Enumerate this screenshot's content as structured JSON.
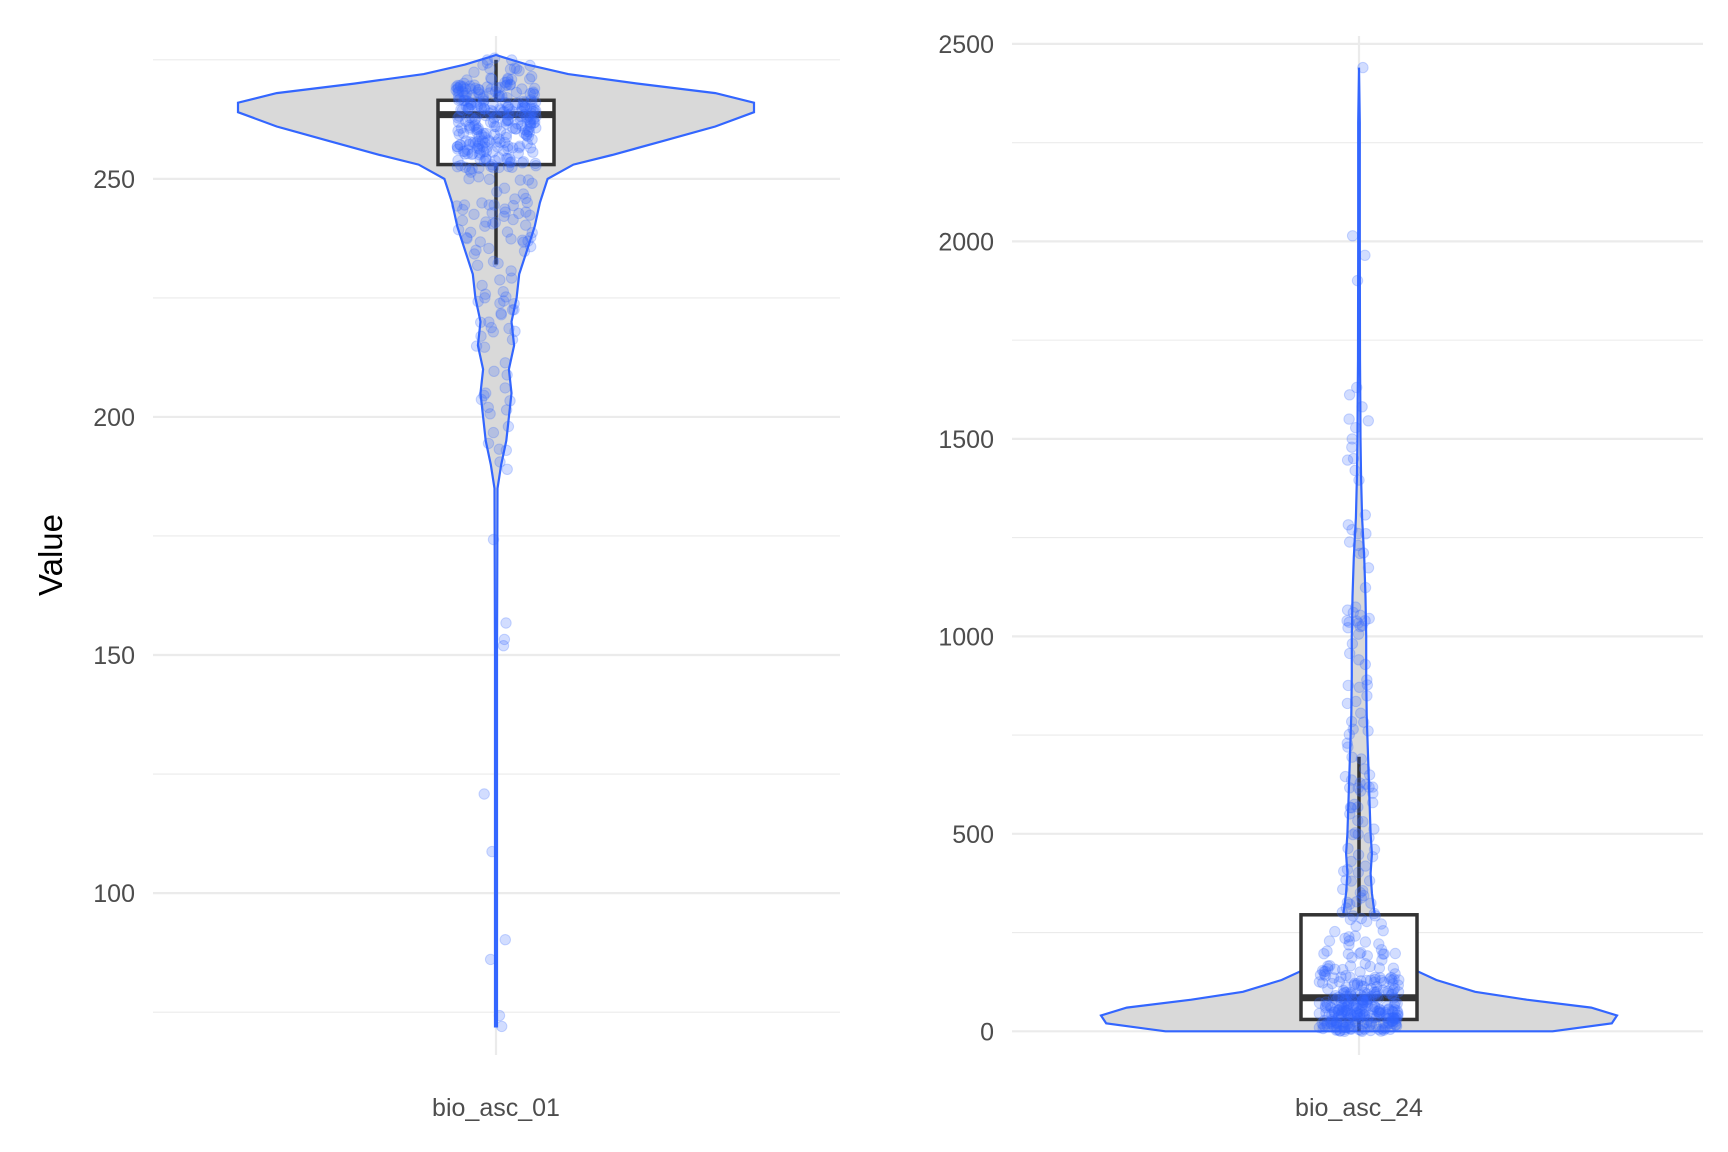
{
  "chart_data": {
    "type": "violin",
    "ylabel": "Value",
    "colors": {
      "violin_fill": "#d9d9d9",
      "violin_stroke": "#3366ff",
      "points": "#3366ff",
      "box": "#333333",
      "grid": "#ebebeb"
    },
    "panels": [
      {
        "category": "bio_asc_01",
        "ylim": [
          66,
          280
        ],
        "yticks": [
          100,
          150,
          200,
          250
        ],
        "box": {
          "min": 232,
          "q1": 253,
          "median": 263.5,
          "q3": 266.5,
          "max": 275
        },
        "violin": {
          "profile": [
            [
              72,
              0.004
            ],
            [
              100,
              0.004
            ],
            [
              150,
              0.004
            ],
            [
              185,
              0.006
            ],
            [
              190,
              0.02
            ],
            [
              195,
              0.04
            ],
            [
              200,
              0.05
            ],
            [
              205,
              0.06
            ],
            [
              210,
              0.05
            ],
            [
              215,
              0.07
            ],
            [
              220,
              0.06
            ],
            [
              225,
              0.08
            ],
            [
              230,
              0.09
            ],
            [
              235,
              0.12
            ],
            [
              240,
              0.15
            ],
            [
              245,
              0.17
            ],
            [
              250,
              0.2
            ],
            [
              253,
              0.3
            ],
            [
              255,
              0.45
            ],
            [
              258,
              0.65
            ],
            [
              261,
              0.85
            ],
            [
              264,
              1.0
            ],
            [
              266,
              1.0
            ],
            [
              268,
              0.85
            ],
            [
              270,
              0.55
            ],
            [
              272,
              0.28
            ],
            [
              274,
              0.12
            ],
            [
              275.5,
              0.03
            ],
            [
              276,
              0
            ]
          ]
        },
        "points": {
          "count": 380,
          "lone_points": [
            72,
            189,
            193,
            198,
            202,
            205
          ]
        }
      },
      {
        "category": "bio_asc_24",
        "ylim": [
          -60,
          2520
        ],
        "yticks": [
          0,
          500,
          1000,
          1500,
          2000,
          2500
        ],
        "box": {
          "min": 0,
          "q1": 30,
          "median": 85,
          "q3": 295,
          "max": 695
        },
        "violin": {
          "profile": [
            [
              0,
              0.75
            ],
            [
              20,
              0.98
            ],
            [
              40,
              1.0
            ],
            [
              60,
              0.9
            ],
            [
              80,
              0.65
            ],
            [
              100,
              0.45
            ],
            [
              130,
              0.3
            ],
            [
              160,
              0.2
            ],
            [
              200,
              0.14
            ],
            [
              250,
              0.09
            ],
            [
              300,
              0.06
            ],
            [
              350,
              0.05
            ],
            [
              400,
              0.045
            ],
            [
              450,
              0.05
            ],
            [
              500,
              0.045
            ],
            [
              600,
              0.04
            ],
            [
              700,
              0.035
            ],
            [
              800,
              0.03
            ],
            [
              900,
              0.028
            ],
            [
              1000,
              0.028
            ],
            [
              1100,
              0.025
            ],
            [
              1200,
              0.02
            ],
            [
              1300,
              0.012
            ],
            [
              1400,
              0.008
            ],
            [
              1500,
              0.006
            ],
            [
              1600,
              0.005
            ],
            [
              1700,
              0.004
            ],
            [
              2000,
              0.003
            ],
            [
              2300,
              0.003
            ],
            [
              2440,
              0
            ]
          ]
        },
        "points": {
          "count": 400,
          "lone_points": [
            2440,
            1630,
            1550,
            1500,
            1450,
            1420,
            1260,
            1270,
            1210
          ]
        }
      }
    ]
  }
}
